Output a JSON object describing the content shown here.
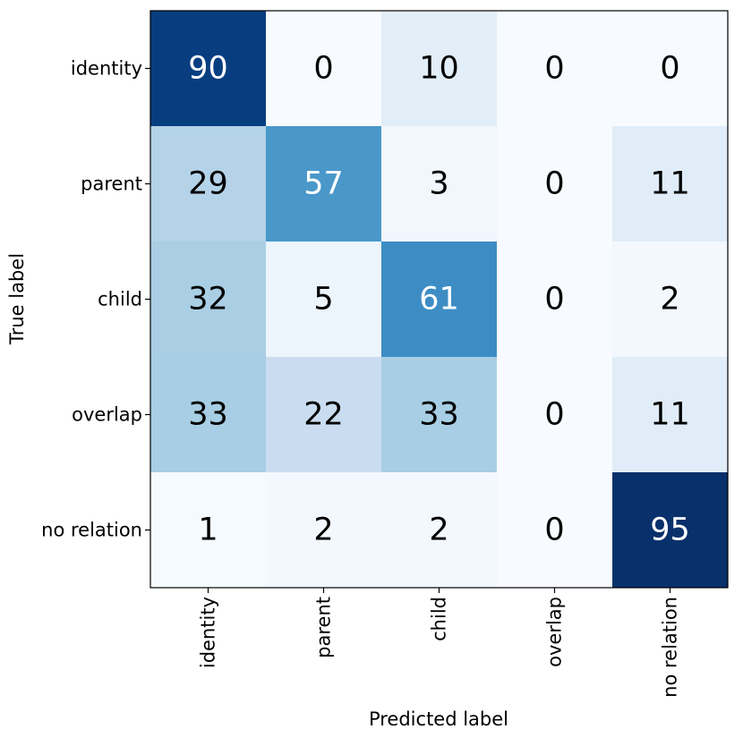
{
  "chart_data": {
    "type": "heatmap",
    "title": "",
    "xlabel": "Predicted label",
    "ylabel": "True label",
    "x_categories": [
      "identity",
      "parent",
      "child",
      "overlap",
      "no relation"
    ],
    "y_categories": [
      "identity",
      "parent",
      "child",
      "overlap",
      "no relation"
    ],
    "values": [
      [
        90,
        0,
        10,
        0,
        0
      ],
      [
        29,
        57,
        3,
        0,
        11
      ],
      [
        32,
        5,
        61,
        0,
        2
      ],
      [
        33,
        22,
        33,
        0,
        11
      ],
      [
        1,
        2,
        2,
        0,
        95
      ]
    ],
    "value_range": [
      0,
      95
    ],
    "colormap": "Blues",
    "colormap_low": "#f7fbff",
    "colormap_high": "#08306b",
    "text_color_dark": "#000000",
    "text_color_light": "#ffffff",
    "grid": false,
    "legend": "none"
  }
}
